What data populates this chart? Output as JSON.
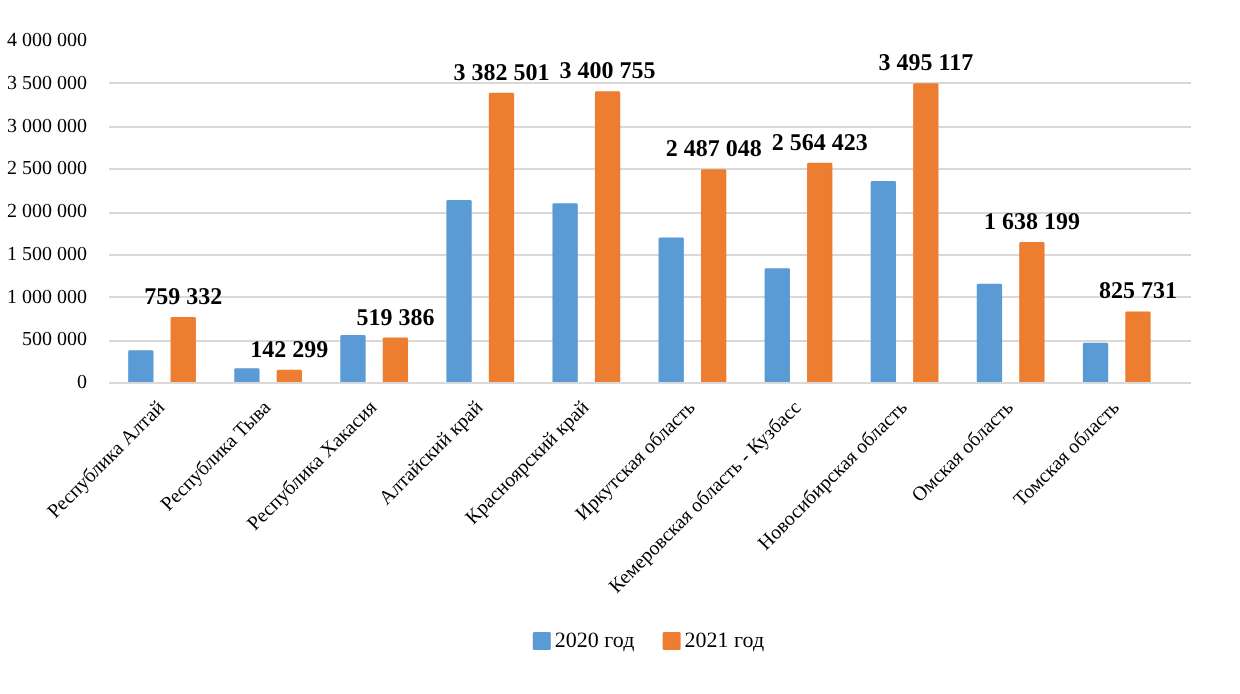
{
  "chart_data": {
    "type": "bar",
    "categories": [
      "Республика Алтай",
      "Республика Тыва",
      "Республика Хакасия",
      "Алтайский край",
      "Красноярский край",
      "Иркутская область",
      "Кемеровская область - Кузбасс",
      "Новосибирская область",
      "Омская область",
      "Томская область"
    ],
    "series": [
      {
        "name": "2020 год",
        "color": "#5b9bd5",
        "values": [
          370000,
          160000,
          550000,
          2130000,
          2090000,
          1690000,
          1330000,
          2350000,
          1150000,
          460000
        ]
      },
      {
        "name": "2021 год",
        "color": "#ed7d31",
        "values": [
          759332,
          142299,
          519386,
          3382501,
          3400755,
          2487048,
          2564423,
          3495117,
          1638199,
          825731
        ],
        "value_labels": [
          "759 332",
          "142 299",
          "519 386",
          "3 382 501",
          "3 400 755",
          "2 487 048",
          "2 564 423",
          "3 495 117",
          "1 638 199",
          "825 731"
        ]
      }
    ],
    "ylim": [
      0,
      4000000
    ],
    "yticks": [
      {
        "value": 0,
        "label": "0"
      },
      {
        "value": 500000,
        "label": "500 000"
      },
      {
        "value": 1000000,
        "label": "1 000 000"
      },
      {
        "value": 1500000,
        "label": "1 500 000"
      },
      {
        "value": 2000000,
        "label": "2 000 000"
      },
      {
        "value": 2500000,
        "label": "2 500 000"
      },
      {
        "value": 3000000,
        "label": "3 000 000"
      },
      {
        "value": 3500000,
        "label": "3 500 000"
      },
      {
        "value": 4000000,
        "label": "4 000 000"
      }
    ],
    "grid": "y",
    "legend": "bottom"
  }
}
